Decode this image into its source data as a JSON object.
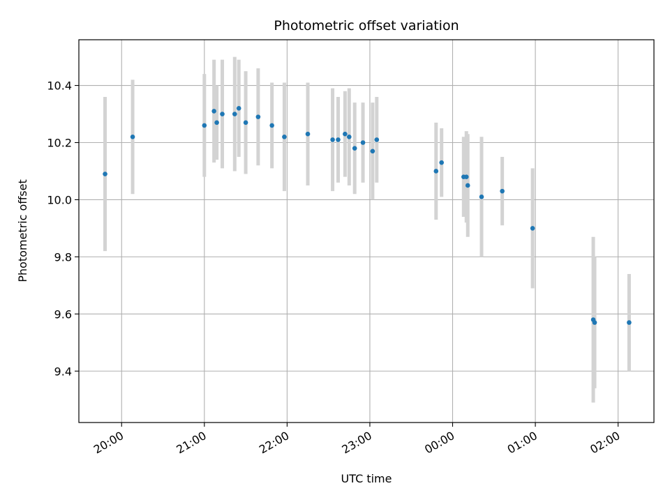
{
  "chart_data": {
    "type": "scatter",
    "title": "Photometric offset variation",
    "xlabel": "UTC time",
    "ylabel": "Photometric offset",
    "x_is_time": true,
    "xlim": [
      "19:29",
      "02:26"
    ],
    "ylim": [
      9.22,
      10.56
    ],
    "xticks": [
      "20:00",
      "21:00",
      "22:00",
      "23:00",
      "00:00",
      "01:00",
      "02:00"
    ],
    "yticks": [
      9.4,
      9.6,
      9.8,
      10.0,
      10.2,
      10.4
    ],
    "ytick_labels": [
      "9.4",
      "9.6",
      "9.8",
      "10.0",
      "10.2",
      "10.4"
    ],
    "grid": true,
    "colors": {
      "point": "#1f77b4",
      "errorbar": "#d3d3d3",
      "grid": "#b0b0b0"
    },
    "points": [
      {
        "t": "19:48",
        "y": 10.09,
        "err": 0.27
      },
      {
        "t": "20:08",
        "y": 10.22,
        "err": 0.2
      },
      {
        "t": "21:00",
        "y": 10.26,
        "err": 0.18
      },
      {
        "t": "21:07",
        "y": 10.31,
        "err": 0.18
      },
      {
        "t": "21:09",
        "y": 10.27,
        "err": 0.13
      },
      {
        "t": "21:13",
        "y": 10.3,
        "err": 0.19
      },
      {
        "t": "21:22",
        "y": 10.3,
        "err": 0.2
      },
      {
        "t": "21:25",
        "y": 10.32,
        "err": 0.17
      },
      {
        "t": "21:30",
        "y": 10.27,
        "err": 0.18
      },
      {
        "t": "21:39",
        "y": 10.29,
        "err": 0.17
      },
      {
        "t": "21:49",
        "y": 10.26,
        "err": 0.15
      },
      {
        "t": "21:58",
        "y": 10.22,
        "err": 0.19
      },
      {
        "t": "22:15",
        "y": 10.23,
        "err": 0.18
      },
      {
        "t": "22:33",
        "y": 10.21,
        "err": 0.18
      },
      {
        "t": "22:37",
        "y": 10.21,
        "err": 0.15
      },
      {
        "t": "22:42",
        "y": 10.23,
        "err": 0.15
      },
      {
        "t": "22:45",
        "y": 10.22,
        "err": 0.17
      },
      {
        "t": "22:49",
        "y": 10.18,
        "err": 0.16
      },
      {
        "t": "22:55",
        "y": 10.2,
        "err": 0.14
      },
      {
        "t": "23:02",
        "y": 10.17,
        "err": 0.17
      },
      {
        "t": "23:05",
        "y": 10.21,
        "err": 0.15
      },
      {
        "t": "23:48",
        "y": 10.1,
        "err": 0.17
      },
      {
        "t": "23:52",
        "y": 10.13,
        "err": 0.12
      },
      {
        "t": "00:08",
        "y": 10.08,
        "err": 0.14
      },
      {
        "t": "00:10",
        "y": 10.08,
        "err": 0.16
      },
      {
        "t": "00:11",
        "y": 10.05,
        "err": 0.18
      },
      {
        "t": "00:21",
        "y": 10.01,
        "err": 0.21
      },
      {
        "t": "00:36",
        "y": 10.03,
        "err": 0.12
      },
      {
        "t": "00:58",
        "y": 9.9,
        "err": 0.21
      },
      {
        "t": "01:42",
        "y": 9.58,
        "err": 0.29
      },
      {
        "t": "01:43",
        "y": 9.57,
        "err": 0.23
      },
      {
        "t": "02:08",
        "y": 9.57,
        "err": 0.17
      }
    ]
  }
}
